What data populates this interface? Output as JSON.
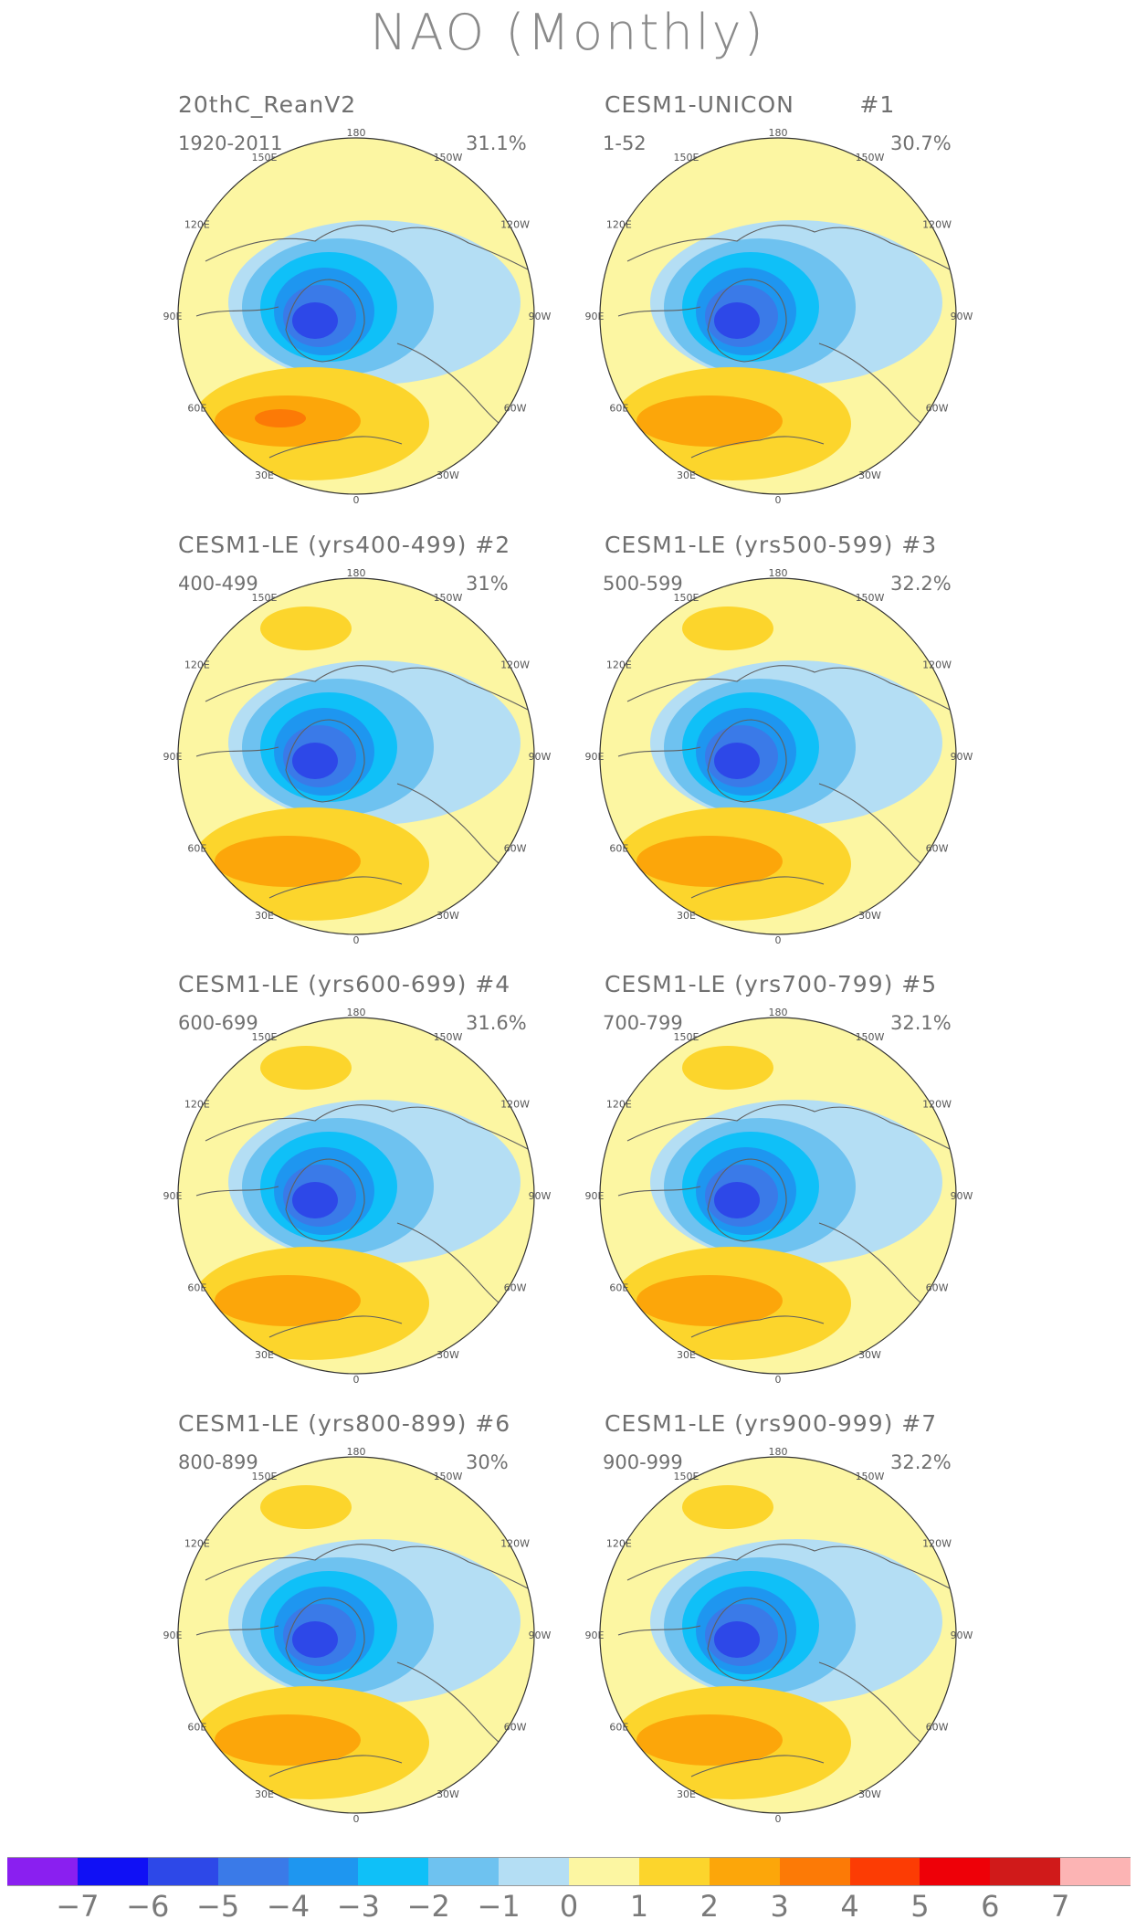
{
  "title": "NAO (Monthly)",
  "longitude_labels": [
    "180",
    "150E",
    "120E",
    "90E",
    "60E",
    "30E",
    "0",
    "30W",
    "60W",
    "90W",
    "120W",
    "150W"
  ],
  "panels": [
    {
      "title": "20thC_ReanV2",
      "years": "1920-2011",
      "pct": "31.1%"
    },
    {
      "title": "CESM1-UNICON        #1",
      "years": "1-52",
      "pct": "30.7%"
    },
    {
      "title": "CESM1-LE (yrs400-499) #2",
      "years": "400-499",
      "pct": "31%"
    },
    {
      "title": "CESM1-LE (yrs500-599) #3",
      "years": "500-599",
      "pct": "32.2%"
    },
    {
      "title": "CESM1-LE (yrs600-699) #4",
      "years": "600-699",
      "pct": "31.6%"
    },
    {
      "title": "CESM1-LE (yrs700-799) #5",
      "years": "700-799",
      "pct": "32.1%"
    },
    {
      "title": "CESM1-LE (yrs800-899) #6",
      "years": "800-899",
      "pct": "30%"
    },
    {
      "title": "CESM1-LE (yrs900-999) #7",
      "years": "900-999",
      "pct": "32.2%"
    }
  ],
  "colorbar": {
    "colors": [
      "#8a1ff0",
      "#1010f5",
      "#2d48e8",
      "#3a7ae8",
      "#1e96f0",
      "#0fc0f8",
      "#6ec2f0",
      "#b4def4",
      "#fcf6a2",
      "#fcd52c",
      "#fca60a",
      "#fc7a06",
      "#fc3c04",
      "#ee0008",
      "#d01a1a",
      "#fcb4b4"
    ],
    "labels": [
      "−7",
      "−6",
      "−5",
      "−4",
      "−3",
      "−2",
      "−1",
      "0",
      "1",
      "2",
      "3",
      "4",
      "5",
      "6",
      "7"
    ]
  }
}
